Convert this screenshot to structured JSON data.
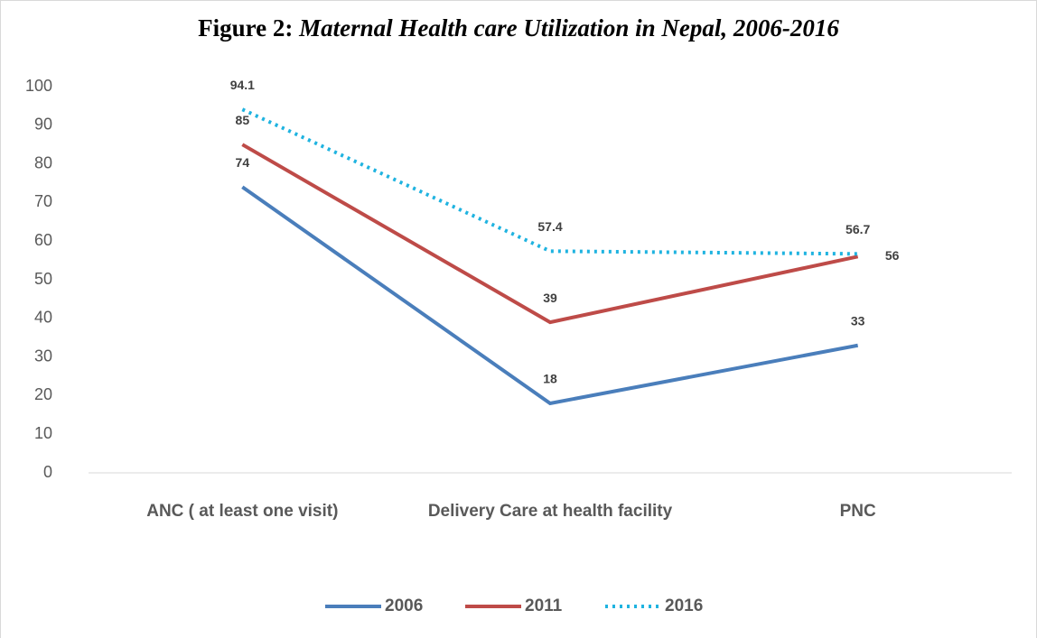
{
  "chart_data": {
    "type": "line",
    "title": "Figure 2: Maternal Health care Utilization in Nepal, 2006-2016",
    "categories": [
      "ANC ( at least one visit)",
      "Delivery Care at health facility",
      "PNC"
    ],
    "series": [
      {
        "name": "2006",
        "color": "#4a7ebb",
        "dash": "solid",
        "values": [
          74,
          18,
          33
        ]
      },
      {
        "name": "2011",
        "color": "#be4b48",
        "dash": "solid",
        "values": [
          85,
          39,
          56
        ]
      },
      {
        "name": "2016",
        "color": "#1fb3e0",
        "dash": "dotted",
        "values": [
          94.1,
          57.4,
          56.7
        ]
      }
    ],
    "ylim": [
      0,
      100
    ],
    "yticks": [
      0,
      10,
      20,
      30,
      40,
      50,
      60,
      70,
      80,
      90,
      100
    ],
    "grid": false,
    "legend": "bottom"
  }
}
